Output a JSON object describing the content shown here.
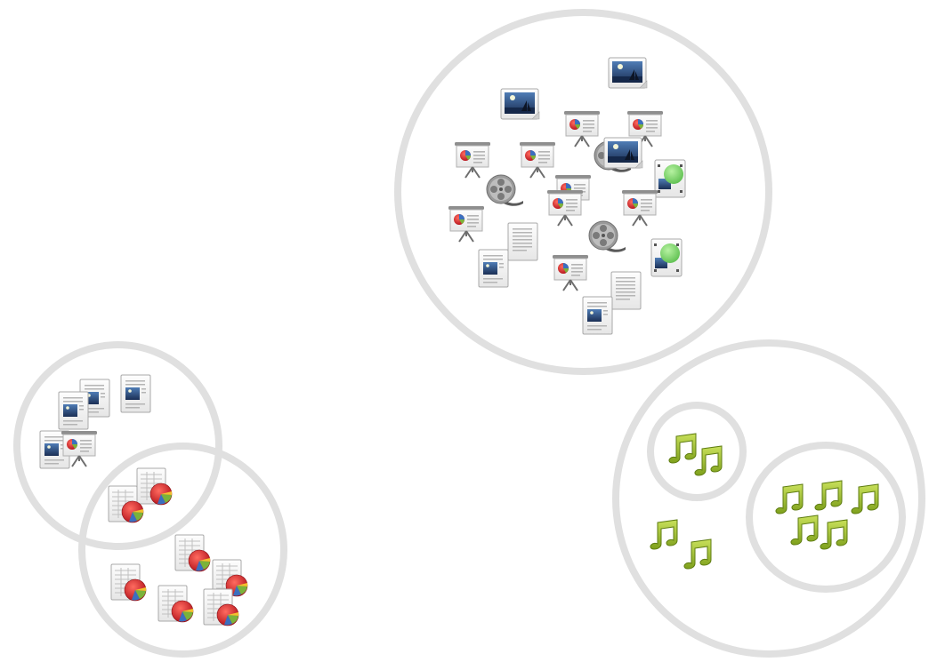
{
  "palette": {
    "ring": "#e0e0e0",
    "paper": "#f7f7f7",
    "paper_edge": "#a9a9a9",
    "pie_red": "#d7262c",
    "pie_blue": "#3a6fbf",
    "pie_green": "#7bb33a",
    "pie_yellow": "#f2c12e",
    "note_green": "#9bbf2b",
    "note_dark": "#5f7d12",
    "photo_sky": "#264a78",
    "photo_sea": "#15284a",
    "film_grey": "#8c8c8c",
    "green_sphere": "#79d56a"
  },
  "clusters": [
    {
      "id": "mixed-media",
      "icons": [
        "image-file-icon",
        "image-file-icon",
        "presentation-icon",
        "presentation-icon",
        "presentation-icon",
        "presentation-icon",
        "video-reel-icon",
        "image-file-icon",
        "svg-image-icon",
        "presentation-icon",
        "video-reel-icon",
        "presentation-icon",
        "presentation-icon",
        "document-icon",
        "video-reel-icon",
        "image-file-icon",
        "presentation-icon",
        "svg-image-icon",
        "document-icon",
        "image-file-icon"
      ]
    },
    {
      "id": "documents",
      "icons": [
        "document-icon",
        "document-icon",
        "document-icon",
        "document-icon",
        "presentation-icon"
      ]
    },
    {
      "id": "spreadsheets",
      "icons": [
        "spreadsheet-icon",
        "spreadsheet-icon",
        "spreadsheet-icon",
        "spreadsheet-icon",
        "spreadsheet-icon",
        "spreadsheet-icon",
        "spreadsheet-icon"
      ]
    },
    {
      "id": "music",
      "icons": [
        "music-note-icon",
        "music-note-icon",
        "music-note-icon"
      ]
    },
    {
      "id": "music-small",
      "icons": [
        "music-note-icon"
      ]
    },
    {
      "id": "music-large",
      "icons": [
        "music-note-icon",
        "music-note-icon",
        "music-note-icon",
        "music-note-icon",
        "music-note-icon"
      ]
    }
  ]
}
